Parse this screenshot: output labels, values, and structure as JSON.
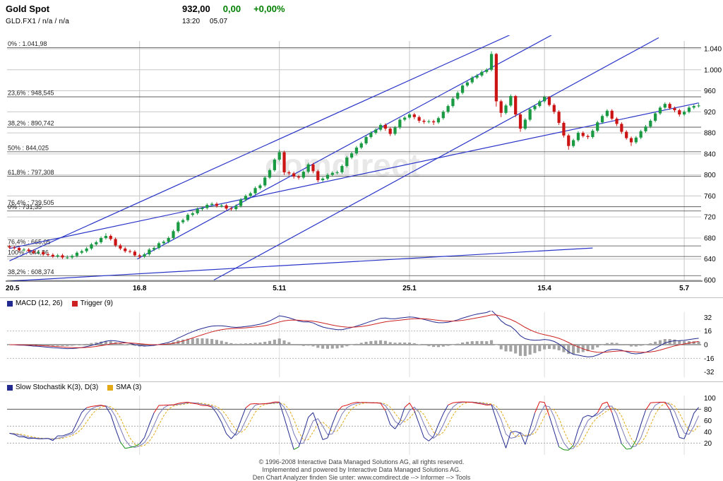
{
  "watermark": "comdirect",
  "header": {
    "title": "Gold Spot",
    "subtitle": "GLD.FX1 / n/a / n/a",
    "price": "932,00",
    "change_abs": "0,00",
    "change_pct": "+0,00%",
    "time": "13:20",
    "date": "05.07"
  },
  "colors": {
    "positive": "#008000",
    "up": "#1a9a43",
    "down": "#cc1414",
    "grid": "#c6c6c6",
    "grid_light": "#dddddd",
    "fib": "#444444",
    "trend": "#2a35c8",
    "macd": "#232a8f",
    "trigger": "#cc2222",
    "hist": "#a3a3a3",
    "stoch_k": "#232a8f",
    "stoch_d": "#7a7ab8",
    "sma": "#e3a917",
    "overbought": "#dd1111",
    "oversold": "#169016",
    "watermark": "#d6d6d6"
  },
  "chart_data": {
    "type": "candlestick",
    "title": "Gold Spot daily chart with Fibonacci retracements, trend lines, MACD and Slow Stochastic",
    "main": {
      "type": "candlestick",
      "ylim": [
        598,
        1044
      ],
      "y_ticks": [
        {
          "value": 1040,
          "label": "1.040"
        },
        {
          "value": 1000,
          "label": "1.000"
        },
        {
          "value": 960,
          "label": "960"
        },
        {
          "value": 920,
          "label": "920"
        },
        {
          "value": 880,
          "label": "880"
        },
        {
          "value": 840,
          "label": "840"
        },
        {
          "value": 800,
          "label": "800"
        },
        {
          "value": 760,
          "label": "760"
        },
        {
          "value": 720,
          "label": "720"
        },
        {
          "value": 680,
          "label": "680"
        },
        {
          "value": 640,
          "label": "640"
        },
        {
          "value": 600,
          "label": "600"
        }
      ],
      "x_ticks": [
        {
          "index": 0,
          "label": "20.5"
        },
        {
          "index": 27,
          "label": "16.8"
        },
        {
          "index": 56,
          "label": "5.11"
        },
        {
          "index": 83,
          "label": "25.1"
        },
        {
          "index": 111,
          "label": "15.4"
        },
        {
          "index": 140,
          "label": "5.7"
        }
      ],
      "fib_levels": [
        {
          "value": 1041.98,
          "label": "0% : 1.041,98"
        },
        {
          "value": 948.545,
          "label": "23,6% : 948,545"
        },
        {
          "value": 890.742,
          "label": "38,2% : 890,742"
        },
        {
          "value": 844.025,
          "label": "50% : 844,025"
        },
        {
          "value": 797.308,
          "label": "61,8% : 797,308"
        },
        {
          "value": 739.505,
          "label": "76,4% : 739,505"
        },
        {
          "value": 731.35,
          "label": "0% : 731,35"
        },
        {
          "value": 665.05,
          "label": "76,4% : 665,05"
        },
        {
          "value": 644.86,
          "label": "100% : 644,86"
        },
        {
          "value": 608.374,
          "label": "38,2% : 608,374"
        }
      ],
      "trend_lines": [
        {
          "from": [
            26.5,
            640
          ],
          "to": [
            113.5,
            1071
          ]
        },
        {
          "from": [
            42.4,
            600
          ],
          "to": [
            134.7,
            1061
          ]
        },
        {
          "from": [
            0,
            636.5
          ],
          "to": [
            105,
            1071
          ]
        },
        {
          "from": [
            0,
            660
          ],
          "to": [
            143,
            937
          ]
        },
        {
          "from": [
            0,
            598
          ],
          "to": [
            121,
            661
          ]
        }
      ],
      "candles": [
        [
          664,
          667,
          659,
          662
        ],
        [
          662,
          665,
          658,
          661
        ],
        [
          661,
          664,
          654,
          657
        ],
        [
          657,
          661,
          654,
          658
        ],
        [
          658,
          661,
          652,
          655
        ],
        [
          655,
          658,
          649,
          652
        ],
        [
          652,
          656,
          649,
          653
        ],
        [
          653,
          656,
          646,
          649
        ],
        [
          649,
          652,
          645,
          648
        ],
        [
          648,
          651,
          642,
          645
        ],
        [
          645,
          650,
          642,
          647
        ],
        [
          647,
          650,
          640,
          643
        ],
        [
          643,
          647,
          640,
          643
        ],
        [
          643,
          649,
          640,
          646
        ],
        [
          646,
          655,
          643,
          652
        ],
        [
          652,
          658,
          649,
          655
        ],
        [
          655,
          663,
          652,
          660
        ],
        [
          660,
          671,
          657,
          668
        ],
        [
          668,
          675,
          665,
          672
        ],
        [
          672,
          683,
          669,
          680
        ],
        [
          680,
          689,
          677,
          684
        ],
        [
          684,
          687,
          675,
          678
        ],
        [
          678,
          681,
          663,
          666
        ],
        [
          666,
          669,
          657,
          660
        ],
        [
          660,
          663,
          652,
          655
        ],
        [
          655,
          658,
          651,
          654
        ],
        [
          654,
          657,
          644,
          647
        ],
        [
          647,
          650,
          641,
          645
        ],
        [
          645,
          652,
          642,
          649
        ],
        [
          649,
          661,
          646,
          658
        ],
        [
          658,
          664,
          655,
          661
        ],
        [
          661,
          673,
          658,
          670
        ],
        [
          670,
          676,
          667,
          673
        ],
        [
          673,
          683,
          670,
          680
        ],
        [
          680,
          696,
          677,
          693
        ],
        [
          693,
          713,
          690,
          710
        ],
        [
          710,
          717,
          707,
          714
        ],
        [
          714,
          727,
          711,
          724
        ],
        [
          724,
          730,
          721,
          727
        ],
        [
          727,
          738,
          724,
          735
        ],
        [
          735,
          740,
          732,
          737
        ],
        [
          737,
          746,
          734,
          743
        ],
        [
          743,
          748,
          740,
          745
        ],
        [
          745,
          748,
          738,
          741
        ],
        [
          741,
          745,
          738,
          742
        ],
        [
          742,
          745,
          733,
          736
        ],
        [
          736,
          739,
          732,
          735
        ],
        [
          735,
          744,
          732,
          741
        ],
        [
          741,
          756,
          738,
          753
        ],
        [
          753,
          763,
          750,
          760
        ],
        [
          760,
          768,
          757,
          765
        ],
        [
          765,
          778,
          762,
          775
        ],
        [
          775,
          783,
          772,
          780
        ],
        [
          780,
          798,
          777,
          795
        ],
        [
          795,
          812,
          792,
          809
        ],
        [
          809,
          832,
          806,
          829
        ],
        [
          829,
          848,
          826,
          843
        ],
        [
          843,
          846,
          800,
          805
        ],
        [
          805,
          808,
          799,
          803
        ],
        [
          803,
          806,
          793,
          797
        ],
        [
          797,
          800,
          791,
          795
        ],
        [
          795,
          809,
          792,
          806
        ],
        [
          806,
          823,
          803,
          820
        ],
        [
          820,
          823,
          803,
          807
        ],
        [
          807,
          810,
          786,
          790
        ],
        [
          790,
          796,
          787,
          793
        ],
        [
          793,
          803,
          790,
          800
        ],
        [
          800,
          807,
          797,
          804
        ],
        [
          804,
          808,
          801,
          805
        ],
        [
          805,
          820,
          802,
          817
        ],
        [
          817,
          836,
          814,
          833
        ],
        [
          833,
          844,
          830,
          841
        ],
        [
          841,
          855,
          838,
          852
        ],
        [
          852,
          863,
          849,
          860
        ],
        [
          860,
          875,
          857,
          872
        ],
        [
          872,
          883,
          869,
          880
        ],
        [
          880,
          889,
          877,
          886
        ],
        [
          886,
          898,
          883,
          895
        ],
        [
          895,
          898,
          884,
          888
        ],
        [
          888,
          891,
          874,
          878
        ],
        [
          878,
          893,
          875,
          890
        ],
        [
          890,
          908,
          887,
          905
        ],
        [
          905,
          912,
          902,
          909
        ],
        [
          909,
          918,
          906,
          915
        ],
        [
          915,
          918,
          906,
          910
        ],
        [
          910,
          913,
          899,
          903
        ],
        [
          903,
          906,
          897,
          901
        ],
        [
          901,
          905,
          898,
          902
        ],
        [
          902,
          905,
          895,
          900
        ],
        [
          900,
          911,
          897,
          908
        ],
        [
          908,
          923,
          905,
          920
        ],
        [
          920,
          934,
          917,
          931
        ],
        [
          931,
          948,
          928,
          945
        ],
        [
          945,
          959,
          942,
          956
        ],
        [
          956,
          973,
          953,
          970
        ],
        [
          970,
          979,
          967,
          976
        ],
        [
          976,
          988,
          973,
          985
        ],
        [
          985,
          992,
          982,
          989
        ],
        [
          989,
          999,
          986,
          996
        ],
        [
          996,
          1003,
          993,
          1000
        ],
        [
          1000,
          1035,
          997,
          1030
        ],
        [
          1030,
          1032,
          930,
          940
        ],
        [
          940,
          943,
          910,
          918
        ],
        [
          918,
          935,
          915,
          932
        ],
        [
          932,
          953,
          929,
          950
        ],
        [
          950,
          952,
          910,
          915
        ],
        [
          915,
          918,
          882,
          888
        ],
        [
          888,
          908,
          885,
          905
        ],
        [
          905,
          928,
          902,
          925
        ],
        [
          925,
          934,
          922,
          931
        ],
        [
          931,
          943,
          928,
          940
        ],
        [
          940,
          951,
          937,
          948
        ],
        [
          948,
          950,
          930,
          933
        ],
        [
          933,
          936,
          916,
          920
        ],
        [
          920,
          923,
          895,
          899
        ],
        [
          899,
          902,
          871,
          875
        ],
        [
          875,
          878,
          848,
          855
        ],
        [
          855,
          869,
          852,
          866
        ],
        [
          866,
          883,
          863,
          880
        ],
        [
          880,
          883,
          871,
          874
        ],
        [
          874,
          877,
          868,
          872
        ],
        [
          872,
          887,
          869,
          884
        ],
        [
          884,
          903,
          881,
          900
        ],
        [
          900,
          915,
          897,
          912
        ],
        [
          912,
          925,
          909,
          922
        ],
        [
          922,
          925,
          904,
          907
        ],
        [
          907,
          910,
          893,
          897
        ],
        [
          897,
          900,
          878,
          882
        ],
        [
          882,
          885,
          867,
          870
        ],
        [
          870,
          873,
          855,
          862
        ],
        [
          862,
          874,
          859,
          871
        ],
        [
          871,
          886,
          868,
          883
        ],
        [
          883,
          895,
          880,
          892
        ],
        [
          892,
          906,
          889,
          903
        ],
        [
          903,
          920,
          900,
          917
        ],
        [
          917,
          931,
          914,
          928
        ],
        [
          928,
          938,
          925,
          935
        ],
        [
          935,
          938,
          924,
          927
        ],
        [
          927,
          930,
          919,
          923
        ],
        [
          923,
          926,
          911,
          915
        ],
        [
          915,
          923,
          912,
          920
        ],
        [
          920,
          931,
          917,
          928
        ],
        [
          928,
          934,
          925,
          931
        ],
        [
          931,
          936,
          928,
          932
        ]
      ]
    },
    "macd": {
      "type": "line+histogram",
      "legend": [
        {
          "label": "MACD (12, 26)"
        },
        {
          "label": "Trigger (9)"
        }
      ],
      "params": {
        "fast": 12,
        "slow": 26,
        "signal": 9
      },
      "ylim": [
        -38,
        38
      ],
      "y_ticks": [
        32,
        16,
        0,
        -16,
        -32
      ],
      "computed_from": "main.candles closing prices"
    },
    "stochastic": {
      "type": "line",
      "legend": [
        {
          "label": "Slow Stochastik K(3), D(3)"
        },
        {
          "label": "SMA (3)"
        }
      ],
      "params": {
        "k": 3,
        "d": 3,
        "sma": 3
      },
      "ylim": [
        0,
        100
      ],
      "y_ticks": [
        100,
        80,
        60,
        40,
        20
      ],
      "thresholds": [
        80,
        50,
        20
      ],
      "computed_from": "main.candles"
    }
  },
  "footer": {
    "line1": "© 1996-2008 Interactive Data Managed Solutions AG, all rights reserved.",
    "line2": "Implemented and powered by Interactive Data Managed Solutions AG.",
    "line3": "Den Chart Analyzer finden Sie unter: www.comdirect.de --> Informer --> Tools"
  }
}
